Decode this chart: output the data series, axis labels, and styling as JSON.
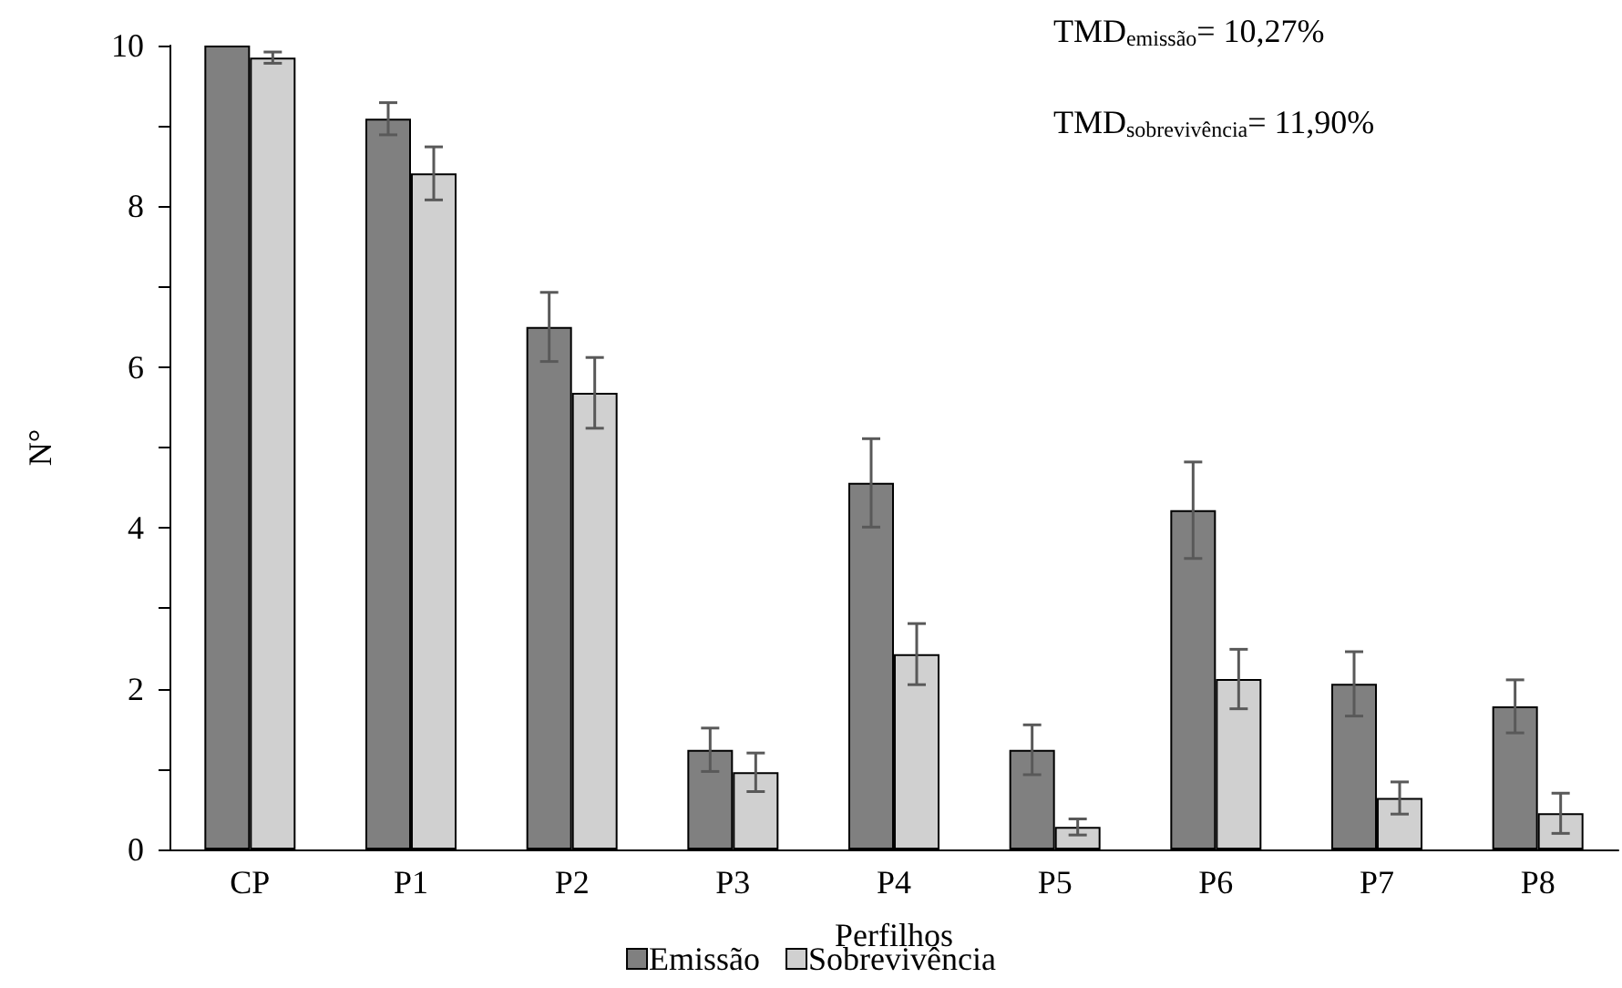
{
  "chart_data": {
    "type": "bar",
    "xlabel": "Perfilhos",
    "ylabel": "N°",
    "categories": [
      "CP",
      "P1",
      "P2",
      "P3",
      "P4",
      "P5",
      "P6",
      "P7",
      "P8"
    ],
    "series": [
      {
        "name": "Emissão",
        "color": "#808080",
        "values": [
          10,
          9.09,
          6.5,
          1.24,
          4.56,
          1.24,
          4.22,
          2.06,
          1.78
        ],
        "errors": [
          null,
          0.2,
          0.43,
          0.27,
          0.55,
          0.31,
          0.6,
          0.4,
          0.33
        ]
      },
      {
        "name": "Sobrevivência",
        "color": "#d0d0d0",
        "values": [
          9.85,
          8.41,
          5.68,
          0.96,
          2.43,
          0.28,
          2.12,
          0.64,
          0.45
        ],
        "errors": [
          0.07,
          0.33,
          0.44,
          0.24,
          0.38,
          0.1,
          0.37,
          0.2,
          0.25
        ]
      }
    ],
    "ylim": [
      0,
      10
    ],
    "yticks": [
      0,
      {
        "value": 1,
        "label": null
      },
      2,
      {
        "value": 3,
        "label": null
      },
      4,
      {
        "value": 5,
        "label": null
      },
      6,
      {
        "value": 7,
        "label": null
      },
      8,
      {
        "value": 9,
        "label": null
      },
      10
    ],
    "annotations": [
      "TMD$_{emissão}$= 10,27%",
      "TMD$_{sobrevivência}$= 11,90%"
    ],
    "grid": false,
    "legend": "bottom"
  }
}
